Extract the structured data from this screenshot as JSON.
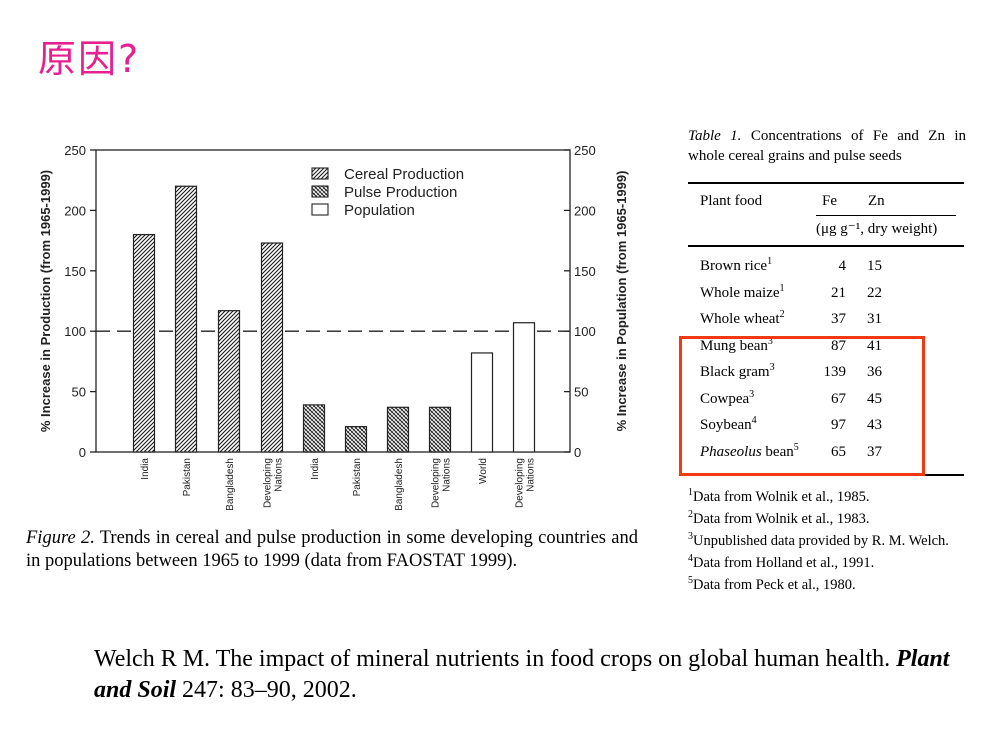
{
  "slide": {
    "title": "原因?"
  },
  "chart_data": {
    "type": "bar",
    "groups": [
      "Cereal Production",
      "Pulse Production",
      "Population"
    ],
    "categories": [
      "India",
      "Pakistan",
      "Bangladesh",
      "Developing Nations",
      "India",
      "Pakistan",
      "Bangladesh",
      "Developing Nations",
      "World",
      "Developing Nations"
    ],
    "values": [
      180,
      220,
      117,
      173,
      39,
      21,
      37,
      37,
      82,
      107
    ],
    "series_of_bar": [
      "Cereal Production",
      "Cereal Production",
      "Cereal Production",
      "Cereal Production",
      "Pulse Production",
      "Pulse Production",
      "Pulse Production",
      "Pulse Production",
      "Population",
      "Population"
    ],
    "ylabel_left": "% Increase in Production (from 1965-1999)",
    "ylabel_right": "% Increase in Population (from 1965-1999)",
    "ylim": [
      0,
      250
    ],
    "yticks": [
      "0",
      "50",
      "100",
      "150",
      "200",
      "250"
    ],
    "reference_line": 100,
    "legend": [
      "Cereal Production",
      "Pulse Production",
      "Population"
    ],
    "legend_placement": "top-right",
    "colors": {
      "hatch": "#1a1a1a",
      "population": "#ffffff"
    }
  },
  "figure": {
    "label": "Figure 2.",
    "caption": "Trends in cereal and pulse production in some developing countries and in populations between 1965 to 1999 (data from FAOSTAT 1999)."
  },
  "table": {
    "label": "Table 1.",
    "title": "Concentrations of Fe and Zn in whole cereal grains and pulse seeds",
    "headers": {
      "food": "Plant food",
      "fe": "Fe",
      "zn": "Zn",
      "unit": "(μg g⁻¹, dry weight)"
    },
    "rows": [
      {
        "food": "Brown rice",
        "note": "1",
        "fe": "4",
        "zn": "15"
      },
      {
        "food": "Whole maize",
        "note": "1",
        "fe": "21",
        "zn": "22"
      },
      {
        "food": "Whole wheat",
        "note": "2",
        "fe": "37",
        "zn": "31"
      },
      {
        "food": "Mung bean",
        "note": "3",
        "fe": "87",
        "zn": "41"
      },
      {
        "food": "Black gram",
        "note": "3",
        "fe": "139",
        "zn": "36"
      },
      {
        "food": "Cowpea",
        "note": "3",
        "fe": "67",
        "zn": "45"
      },
      {
        "food": "Soybean",
        "note": "4",
        "fe": "97",
        "zn": "43"
      },
      {
        "food": "Phaseolus",
        "food_suffix": " bean",
        "note": "5",
        "fe": "65",
        "zn": "37"
      }
    ],
    "footnotes": [
      {
        "n": "1",
        "text": "Data from Wolnik et al., 1985."
      },
      {
        "n": "2",
        "text": "Data from Wolnik et al., 1983."
      },
      {
        "n": "3",
        "text": "Unpublished data provided by R. M. Welch."
      },
      {
        "n": "4",
        "text": "Data from Holland et al., 1991."
      },
      {
        "n": "5",
        "text": "Data from Peck et al., 1980."
      }
    ],
    "highlight_color": "#f23a12"
  },
  "citation": {
    "prefix": "Welch R M. The impact of mineral nutrients in food crops on global human health. ",
    "journal": "Plant and Soil",
    "suffix": " 247: 83–90, 2002."
  }
}
